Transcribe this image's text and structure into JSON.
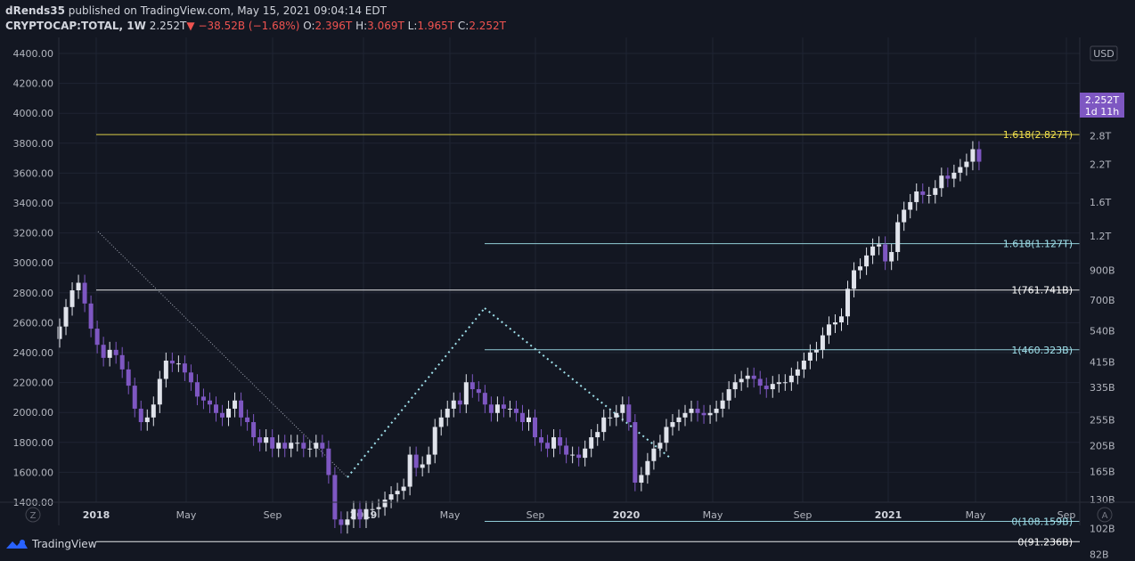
{
  "header": {
    "author": "dRends35",
    "published": "published on TradingView.com, May 15, 2021 09:04:14 EDT",
    "symbol": "CRYPTOCAP:TOTAL, 1W",
    "last": "2.252T",
    "change": "−38.52B (−1.68%)",
    "open_label": "O:",
    "open": "2.396T",
    "high_label": "H:",
    "high": "3.069T",
    "low_label": "L:",
    "low": "1.965T",
    "close_label": "C:",
    "close": "2.252T"
  },
  "footer": {
    "brand": "TradingView"
  },
  "colors": {
    "up": "#e0e3eb",
    "down": "#7e57c2",
    "price_badge": "#7e57c2",
    "fib_top": "#f2e14c",
    "fib_cyan": "#9fe0ea",
    "fib_white": "#ffffff"
  },
  "chart_data": {
    "type": "candlestick",
    "interval": "1W",
    "left_axis": {
      "ylim": [
        1400,
        4500
      ],
      "ticks": [
        "4400.00",
        "4200.00",
        "4000.00",
        "3800.00",
        "3600.00",
        "3400.00",
        "3200.00",
        "3000.00",
        "2800.00",
        "2600.00",
        "2400.00",
        "2200.00",
        "2000.00",
        "1800.00",
        "1600.00",
        "1400.00"
      ]
    },
    "right_axis": {
      "scale": "log",
      "unit": "USD",
      "ticks": [
        "3.6T",
        "2.8T",
        "2.2T",
        "1.6T",
        "1.2T",
        "900B",
        "700B",
        "540B",
        "415B",
        "335B",
        "255B",
        "205B",
        "165B",
        "130B",
        "102B",
        "82B"
      ]
    },
    "x_ticks": [
      "2018",
      "May",
      "Sep",
      "2019",
      "May",
      "Sep",
      "2020",
      "May",
      "Sep",
      "2021",
      "May",
      "Sep"
    ],
    "price_badge": {
      "value": "2.252T",
      "countdown": "1d 11h"
    },
    "fib_levels": [
      {
        "label": "1.618(2.827T)",
        "value": 2.827,
        "color": "#f2e14c"
      },
      {
        "label": "1.618(1.127T)",
        "value": 1.127,
        "color": "#9fe0ea"
      },
      {
        "label": "1(761.741B)",
        "value": 0.7617,
        "color": "#ffffff"
      },
      {
        "label": "1(460.323B)",
        "value": 0.4603,
        "color": "#9fe0ea"
      },
      {
        "label": "0(108.159B)",
        "value": 0.1082,
        "color": "#9fe0ea"
      },
      {
        "label": "0(91.236B)",
        "value": 0.0912,
        "color": "#ffffff"
      }
    ],
    "weekly_close_trillions": [
      0.56,
      0.66,
      0.76,
      0.81,
      0.68,
      0.55,
      0.48,
      0.43,
      0.46,
      0.44,
      0.39,
      0.34,
      0.28,
      0.25,
      0.26,
      0.29,
      0.36,
      0.42,
      0.41,
      0.41,
      0.38,
      0.35,
      0.31,
      0.3,
      0.29,
      0.27,
      0.26,
      0.28,
      0.3,
      0.26,
      0.25,
      0.22,
      0.21,
      0.22,
      0.2,
      0.21,
      0.2,
      0.21,
      0.21,
      0.2,
      0.2,
      0.21,
      0.2,
      0.16,
      0.11,
      0.105,
      0.11,
      0.12,
      0.11,
      0.12,
      0.12,
      0.122,
      0.13,
      0.136,
      0.14,
      0.145,
      0.19,
      0.17,
      0.175,
      0.19,
      0.24,
      0.26,
      0.28,
      0.3,
      0.29,
      0.35,
      0.33,
      0.32,
      0.29,
      0.27,
      0.29,
      0.28,
      0.28,
      0.27,
      0.25,
      0.26,
      0.22,
      0.21,
      0.2,
      0.22,
      0.205,
      0.19,
      0.19,
      0.185,
      0.2,
      0.22,
      0.23,
      0.26,
      0.26,
      0.27,
      0.29,
      0.25,
      0.15,
      0.16,
      0.18,
      0.2,
      0.21,
      0.24,
      0.25,
      0.26,
      0.27,
      0.28,
      0.27,
      0.265,
      0.27,
      0.28,
      0.3,
      0.33,
      0.35,
      0.36,
      0.37,
      0.36,
      0.34,
      0.33,
      0.345,
      0.35,
      0.35,
      0.37,
      0.39,
      0.42,
      0.45,
      0.46,
      0.52,
      0.57,
      0.58,
      0.61,
      0.77,
      0.9,
      0.93,
      1.02,
      1.1,
      1.12,
      0.97,
      1.05,
      1.35,
      1.5,
      1.6,
      1.75,
      1.7,
      1.7,
      1.8,
      2.0,
      1.95,
      2.05,
      2.15,
      2.25,
      2.5,
      2.25
    ]
  }
}
